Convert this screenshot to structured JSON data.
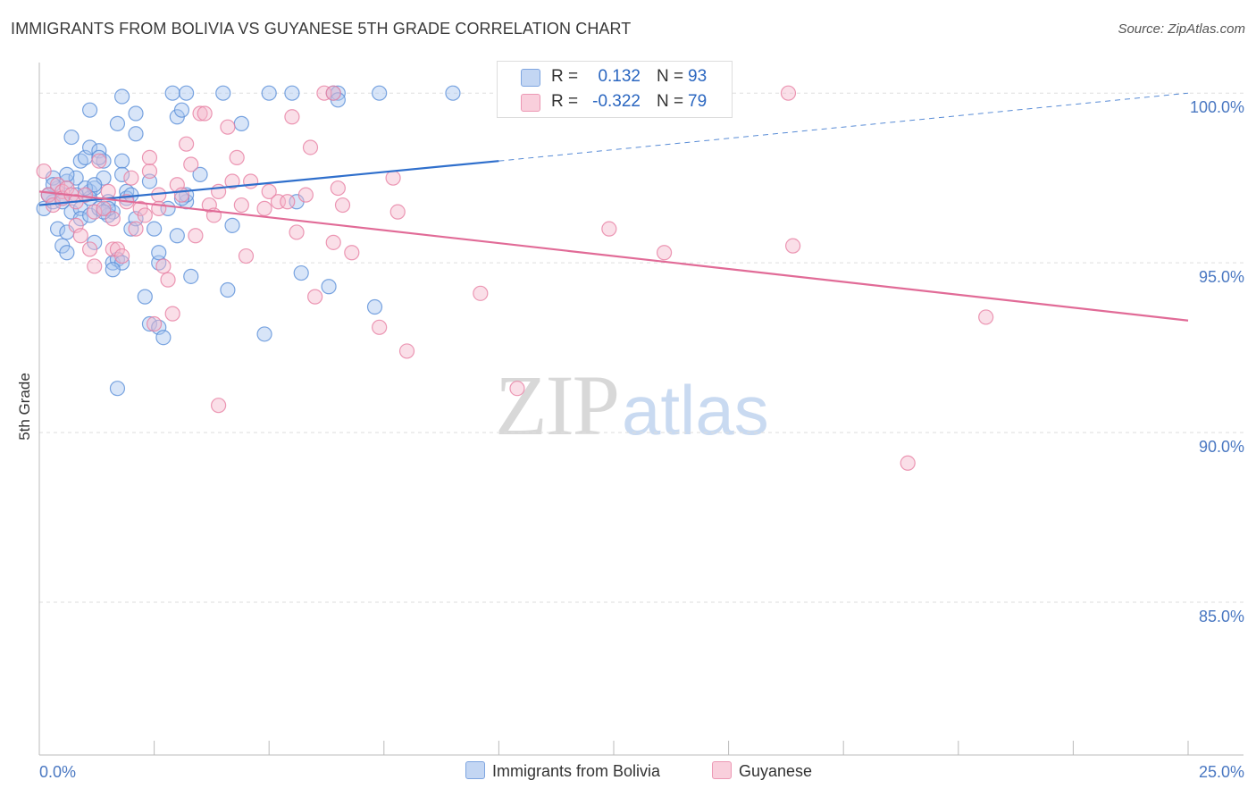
{
  "header": {
    "title": "IMMIGRANTS FROM BOLIVIA VS GUYANESE 5TH GRADE CORRELATION CHART",
    "source": "Source: ZipAtlas.com"
  },
  "watermark": {
    "zip": "ZIP",
    "atlas": "atlas"
  },
  "stats_legend": {
    "rows": [
      {
        "r_label": "R =",
        "r_value": "0.132",
        "n_label": "N =",
        "n_value": "93",
        "color": "#a9c5ef"
      },
      {
        "r_label": "R =",
        "r_value": "-0.322",
        "n_label": "N =",
        "n_value": "79",
        "color": "#f5b8cb"
      }
    ]
  },
  "bottom_legend": {
    "items": [
      {
        "label": "Immigrants from Bolivia",
        "color": "#a9c5ef"
      },
      {
        "label": "Guyanese",
        "color": "#f5b8cb"
      }
    ]
  },
  "chart_data": {
    "type": "scatter",
    "title": "IMMIGRANTS FROM BOLIVIA VS GUYANESE 5TH GRADE CORRELATION CHART",
    "xlabel": "",
    "ylabel": "5th Grade",
    "xlim": [
      0,
      25
    ],
    "ylim": [
      80.5,
      100.9
    ],
    "x_tick_labels": [
      "0.0%",
      "25.0%"
    ],
    "y_ticks": [
      85,
      90,
      95,
      100
    ],
    "y_tick_labels": [
      "85.0%",
      "90.0%",
      "95.0%",
      "100.0%"
    ],
    "grid": true,
    "legend_placement": "bottom",
    "series": [
      {
        "name": "Immigrants from Bolivia",
        "color": "#5a8fd8",
        "fill": "#a9c5ef",
        "trend": {
          "x": [
            0,
            10
          ],
          "y": [
            96.7,
            98.0
          ],
          "dashed_to": [
            25,
            100.0
          ],
          "color": "#2f6fcc"
        },
        "points": [
          [
            0.1,
            96.6
          ],
          [
            0.2,
            97.0
          ],
          [
            0.3,
            96.8
          ],
          [
            0.4,
            97.2
          ],
          [
            0.5,
            96.9
          ],
          [
            0.3,
            97.5
          ],
          [
            0.6,
            97.4
          ],
          [
            0.8,
            97.5
          ],
          [
            0.4,
            96.0
          ],
          [
            0.6,
            95.9
          ],
          [
            0.7,
            96.5
          ],
          [
            0.9,
            96.6
          ],
          [
            0.5,
            95.5
          ],
          [
            0.6,
            95.3
          ],
          [
            0.9,
            96.3
          ],
          [
            1.1,
            96.4
          ],
          [
            0.7,
            98.7
          ],
          [
            0.9,
            98.0
          ],
          [
            1.0,
            98.1
          ],
          [
            1.1,
            97.1
          ],
          [
            1.2,
            97.2
          ],
          [
            1.1,
            96.9
          ],
          [
            0.6,
            97.6
          ],
          [
            0.3,
            97.3
          ],
          [
            1.1,
            99.5
          ],
          [
            1.1,
            98.4
          ],
          [
            1.3,
            98.3
          ],
          [
            1.4,
            98.0
          ],
          [
            1.3,
            98.1
          ],
          [
            1.4,
            97.5
          ],
          [
            1.5,
            96.8
          ],
          [
            1.6,
            96.5
          ],
          [
            1.3,
            96.6
          ],
          [
            1.5,
            96.4
          ],
          [
            1.2,
            95.6
          ],
          [
            1.6,
            95.0
          ],
          [
            1.7,
            95.1
          ],
          [
            1.8,
            95.0
          ],
          [
            1.6,
            94.8
          ],
          [
            1.5,
            96.6
          ],
          [
            1.8,
            98.0
          ],
          [
            1.8,
            97.6
          ],
          [
            1.9,
            97.1
          ],
          [
            1.9,
            96.9
          ],
          [
            2.0,
            96.0
          ],
          [
            2.1,
            96.3
          ],
          [
            1.8,
            99.9
          ],
          [
            1.7,
            99.1
          ],
          [
            2.1,
            99.4
          ],
          [
            2.1,
            98.8
          ],
          [
            2.4,
            97.4
          ],
          [
            2.5,
            96.0
          ],
          [
            2.3,
            94.0
          ],
          [
            2.4,
            93.2
          ],
          [
            2.6,
            93.1
          ],
          [
            2.7,
            92.8
          ],
          [
            2.6,
            95.0
          ],
          [
            2.6,
            95.3
          ],
          [
            2.8,
            96.6
          ],
          [
            3.0,
            95.8
          ],
          [
            3.0,
            99.3
          ],
          [
            3.1,
            99.5
          ],
          [
            3.2,
            96.8
          ],
          [
            3.2,
            97.0
          ],
          [
            3.3,
            94.6
          ],
          [
            3.5,
            97.6
          ],
          [
            2.9,
            100.0
          ],
          [
            3.2,
            100.0
          ],
          [
            4.0,
            100.0
          ],
          [
            4.2,
            96.1
          ],
          [
            4.4,
            99.1
          ],
          [
            4.1,
            94.2
          ],
          [
            5.0,
            100.0
          ],
          [
            5.5,
            100.0
          ],
          [
            5.7,
            94.7
          ],
          [
            5.6,
            96.8
          ],
          [
            6.3,
            94.3
          ],
          [
            6.4,
            100.0
          ],
          [
            6.5,
            100.0
          ],
          [
            6.5,
            99.8
          ],
          [
            7.3,
            93.7
          ],
          [
            7.4,
            100.0
          ],
          [
            9.0,
            100.0
          ],
          [
            4.9,
            92.9
          ],
          [
            1.7,
            91.3
          ],
          [
            1.0,
            97.2
          ],
          [
            0.2,
            97.0
          ],
          [
            0.8,
            97.0
          ],
          [
            1.2,
            97.3
          ],
          [
            1.4,
            96.5
          ],
          [
            2.0,
            97.0
          ],
          [
            3.1,
            96.9
          ],
          [
            0.5,
            96.8
          ]
        ]
      },
      {
        "name": "Guyanese",
        "color": "#e77fa3",
        "fill": "#f5b8cb",
        "trend": {
          "x": [
            0,
            25
          ],
          "y": [
            97.1,
            93.3
          ],
          "color": "#e16b97"
        },
        "points": [
          [
            0.1,
            97.7
          ],
          [
            0.2,
            97.0
          ],
          [
            0.3,
            96.7
          ],
          [
            0.4,
            97.3
          ],
          [
            0.5,
            97.1
          ],
          [
            0.5,
            96.9
          ],
          [
            0.6,
            97.2
          ],
          [
            0.7,
            97.0
          ],
          [
            0.8,
            96.8
          ],
          [
            0.8,
            96.1
          ],
          [
            0.9,
            95.8
          ],
          [
            1.0,
            97.0
          ],
          [
            1.1,
            95.4
          ],
          [
            1.2,
            96.5
          ],
          [
            1.3,
            98.0
          ],
          [
            1.2,
            94.9
          ],
          [
            1.4,
            96.6
          ],
          [
            1.6,
            96.3
          ],
          [
            1.6,
            95.4
          ],
          [
            1.7,
            95.4
          ],
          [
            1.8,
            95.2
          ],
          [
            1.5,
            97.1
          ],
          [
            1.9,
            96.8
          ],
          [
            2.0,
            97.5
          ],
          [
            2.1,
            96.0
          ],
          [
            2.2,
            96.6
          ],
          [
            2.3,
            96.4
          ],
          [
            2.4,
            97.7
          ],
          [
            2.4,
            98.1
          ],
          [
            2.6,
            97.0
          ],
          [
            2.6,
            96.6
          ],
          [
            2.7,
            94.9
          ],
          [
            2.8,
            94.5
          ],
          [
            2.9,
            93.5
          ],
          [
            2.5,
            93.2
          ],
          [
            3.0,
            97.3
          ],
          [
            3.1,
            97.0
          ],
          [
            3.2,
            98.5
          ],
          [
            3.3,
            97.9
          ],
          [
            3.4,
            95.8
          ],
          [
            3.5,
            99.4
          ],
          [
            3.6,
            99.4
          ],
          [
            3.7,
            96.7
          ],
          [
            3.8,
            96.4
          ],
          [
            3.9,
            97.1
          ],
          [
            4.1,
            99.0
          ],
          [
            4.2,
            97.4
          ],
          [
            4.3,
            98.1
          ],
          [
            4.4,
            96.7
          ],
          [
            4.5,
            95.2
          ],
          [
            4.6,
            97.4
          ],
          [
            4.9,
            96.6
          ],
          [
            5.0,
            97.1
          ],
          [
            5.2,
            96.8
          ],
          [
            5.5,
            99.3
          ],
          [
            5.4,
            96.8
          ],
          [
            5.6,
            95.9
          ],
          [
            5.8,
            97.0
          ],
          [
            5.9,
            98.4
          ],
          [
            6.0,
            94.0
          ],
          [
            6.2,
            100.0
          ],
          [
            6.4,
            100.0
          ],
          [
            6.4,
            95.6
          ],
          [
            6.5,
            97.2
          ],
          [
            6.6,
            96.7
          ],
          [
            6.8,
            95.3
          ],
          [
            7.4,
            93.1
          ],
          [
            7.7,
            97.5
          ],
          [
            7.8,
            96.5
          ],
          [
            8.0,
            92.4
          ],
          [
            9.6,
            94.1
          ],
          [
            10.4,
            91.3
          ],
          [
            12.4,
            96.0
          ],
          [
            13.6,
            95.3
          ],
          [
            16.4,
            95.5
          ],
          [
            16.3,
            100.0
          ],
          [
            18.9,
            89.1
          ],
          [
            20.6,
            93.4
          ],
          [
            3.9,
            90.8
          ]
        ]
      }
    ]
  }
}
